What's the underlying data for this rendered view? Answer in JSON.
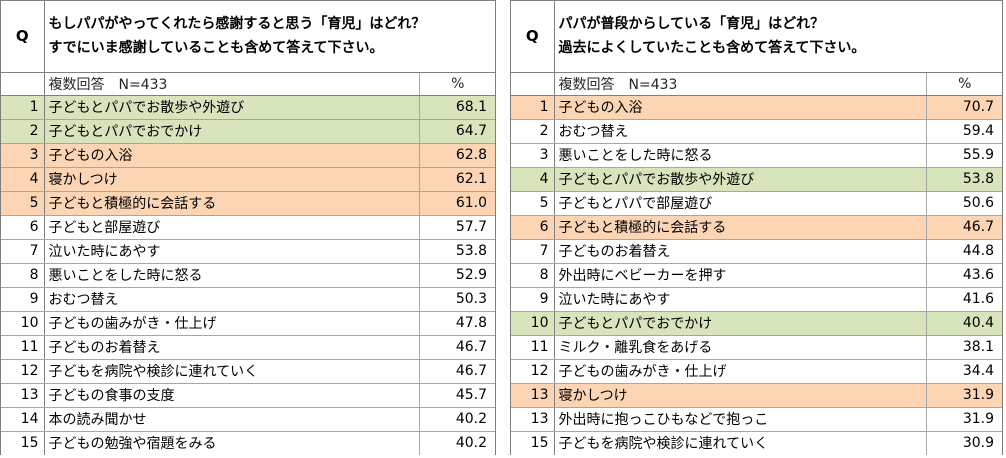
{
  "colors": {
    "green": "#d8e4bc",
    "orange": "#fcd5b4",
    "white": "#ffffff"
  },
  "left": {
    "q_label": "Q",
    "title_line1": "もしパパがやってくれたら感謝すると思う「育児」はどれ？",
    "title_line2": "すでにいま感謝していることも含めて答えて下さい。",
    "subheader_label": "複数回答　N=433",
    "subheader_unit": "%",
    "rows": [
      {
        "rank": "1",
        "item": "子どもとパパでお散歩や外遊び",
        "value": "68.1",
        "highlight": "green"
      },
      {
        "rank": "2",
        "item": "子どもとパパでおでかけ",
        "value": "64.7",
        "highlight": "green"
      },
      {
        "rank": "3",
        "item": "子どもの入浴",
        "value": "62.8",
        "highlight": "orange"
      },
      {
        "rank": "4",
        "item": "寝かしつけ",
        "value": "62.1",
        "highlight": "orange"
      },
      {
        "rank": "5",
        "item": "子どもと積極的に会話する",
        "value": "61.0",
        "highlight": "orange"
      },
      {
        "rank": "6",
        "item": "子どもと部屋遊び",
        "value": "57.7",
        "highlight": "none"
      },
      {
        "rank": "7",
        "item": "泣いた時にあやす",
        "value": "53.8",
        "highlight": "none"
      },
      {
        "rank": "8",
        "item": "悪いことをした時に怒る",
        "value": "52.9",
        "highlight": "none"
      },
      {
        "rank": "9",
        "item": "おむつ替え",
        "value": "50.3",
        "highlight": "none"
      },
      {
        "rank": "10",
        "item": "子どもの歯みがき・仕上げ",
        "value": "47.8",
        "highlight": "none"
      },
      {
        "rank": "11",
        "item": "子どものお着替え",
        "value": "46.7",
        "highlight": "none"
      },
      {
        "rank": "12",
        "item": "子どもを病院や検診に連れていく",
        "value": "46.7",
        "highlight": "none"
      },
      {
        "rank": "13",
        "item": "子どもの食事の支度",
        "value": "45.7",
        "highlight": "none"
      },
      {
        "rank": "14",
        "item": "本の読み聞かせ",
        "value": "40.2",
        "highlight": "none"
      },
      {
        "rank": "15",
        "item": "子どもの勉強や宿題をみる",
        "value": "40.2",
        "highlight": "none"
      }
    ]
  },
  "right": {
    "q_label": "Q",
    "title_line1": "パパが普段からしている「育児」はどれ？",
    "title_line2": "過去によくしていたことも含めて答えて下さい。",
    "subheader_label": "複数回答　N=433",
    "subheader_unit": "%",
    "rows": [
      {
        "rank": "1",
        "item": "子どもの入浴",
        "value": "70.7",
        "highlight": "orange"
      },
      {
        "rank": "2",
        "item": "おむつ替え",
        "value": "59.4",
        "highlight": "none"
      },
      {
        "rank": "3",
        "item": "悪いことをした時に怒る",
        "value": "55.9",
        "highlight": "none"
      },
      {
        "rank": "4",
        "item": "子どもとパパでお散歩や外遊び",
        "value": "53.8",
        "highlight": "green"
      },
      {
        "rank": "5",
        "item": "子どもとパパで部屋遊び",
        "value": "50.6",
        "highlight": "none"
      },
      {
        "rank": "6",
        "item": "子どもと積極的に会話する",
        "value": "46.7",
        "highlight": "orange"
      },
      {
        "rank": "7",
        "item": "子どものお着替え",
        "value": "44.8",
        "highlight": "none"
      },
      {
        "rank": "8",
        "item": "外出時にベビーカーを押す",
        "value": "43.6",
        "highlight": "none"
      },
      {
        "rank": "9",
        "item": "泣いた時にあやす",
        "value": "41.6",
        "highlight": "none"
      },
      {
        "rank": "10",
        "item": "子どもとパパでおでかけ",
        "value": "40.4",
        "highlight": "green"
      },
      {
        "rank": "11",
        "item": "ミルク・離乳食をあげる",
        "value": "38.1",
        "highlight": "none"
      },
      {
        "rank": "12",
        "item": "子どもの歯みがき・仕上げ",
        "value": "34.4",
        "highlight": "none"
      },
      {
        "rank": "13",
        "item": "寝かしつけ",
        "value": "31.9",
        "highlight": "orange"
      },
      {
        "rank": "13",
        "item": "外出時に抱っこひもなどで抱っこ",
        "value": "31.9",
        "highlight": "none"
      },
      {
        "rank": "15",
        "item": "子どもを病院や検診に連れていく",
        "value": "30.9",
        "highlight": "none"
      }
    ]
  },
  "chart_data": [
    {
      "type": "table",
      "title": "もしパパがやってくれたら感謝すると思う「育児」はどれ？ すでにいま感謝していることも含めて答えて下さい。",
      "note": "複数回答　N=433",
      "unit": "%",
      "categories": [
        "子どもとパパでお散歩や外遊び",
        "子どもとパパでおでかけ",
        "子どもの入浴",
        "寝かしつけ",
        "子どもと積極的に会話する",
        "子どもと部屋遊び",
        "泣いた時にあやす",
        "悪いことをした時に怒る",
        "おむつ替え",
        "子どもの歯みがき・仕上げ",
        "子どものお着替え",
        "子どもを病院や検診に連れていく",
        "子どもの食事の支度",
        "本の読み聞かせ",
        "子どもの勉強や宿題をみる"
      ],
      "values": [
        68.1,
        64.7,
        62.8,
        62.1,
        61.0,
        57.7,
        53.8,
        52.9,
        50.3,
        47.8,
        46.7,
        46.7,
        45.7,
        40.2,
        40.2
      ]
    },
    {
      "type": "table",
      "title": "パパが普段からしている「育児」はどれ？ 過去によくしていたことも含めて答えて下さい。",
      "note": "複数回答　N=433",
      "unit": "%",
      "categories": [
        "子どもの入浴",
        "おむつ替え",
        "悪いことをした時に怒る",
        "子どもとパパでお散歩や外遊び",
        "子どもとパパで部屋遊び",
        "子どもと積極的に会話する",
        "子どものお着替え",
        "外出時にベビーカーを押す",
        "泣いた時にあやす",
        "子どもとパパでおでかけ",
        "ミルク・離乳食をあげる",
        "子どもの歯みがき・仕上げ",
        "寝かしつけ",
        "外出時に抱っこひもなどで抱っこ",
        "子どもを病院や検診に連れていく"
      ],
      "values": [
        70.7,
        59.4,
        55.9,
        53.8,
        50.6,
        46.7,
        44.8,
        43.6,
        41.6,
        40.4,
        38.1,
        34.4,
        31.9,
        31.9,
        30.9
      ]
    }
  ]
}
